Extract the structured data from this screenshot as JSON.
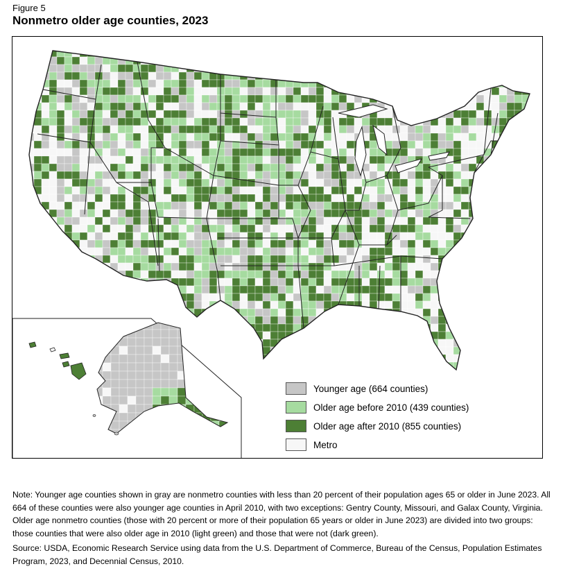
{
  "figure": {
    "label": "Figure 5",
    "title": "Nonmetro older age counties, 2023"
  },
  "colors": {
    "younger": "#c6c6c6",
    "older_before": "#a6dba0",
    "older_after": "#4d7f35",
    "metro": "#f7f7f7",
    "border": "#222222"
  },
  "legend": {
    "items": [
      {
        "key": "younger",
        "label": "Younger age (664 counties)"
      },
      {
        "key": "older_before",
        "label": "Older age before 2010 (439 counties)"
      },
      {
        "key": "older_after",
        "label": "Older age after 2010 (855 counties)"
      },
      {
        "key": "metro",
        "label": "Metro"
      }
    ]
  },
  "note": "Note: Younger age counties shown in gray are nonmetro counties with less than 20 percent of their population ages 65 or older in June 2023. All 664 of these counties were also younger age counties in April 2010, with two exceptions: Gentry County, Missouri, and Galax County, Virginia. Older age nonmetro counties (those with 20 percent or more of their population 65 years or older in June 2023) are divided into two groups: those counties that were also older age in 2010 (light green) and those that were not (dark green).",
  "source": "Source: USDA, Economic Research Service using data from the U.S. Department of Commerce, Bureau of the Census, Population Estimates Program, 2023, and Decennial Census, 2010."
}
